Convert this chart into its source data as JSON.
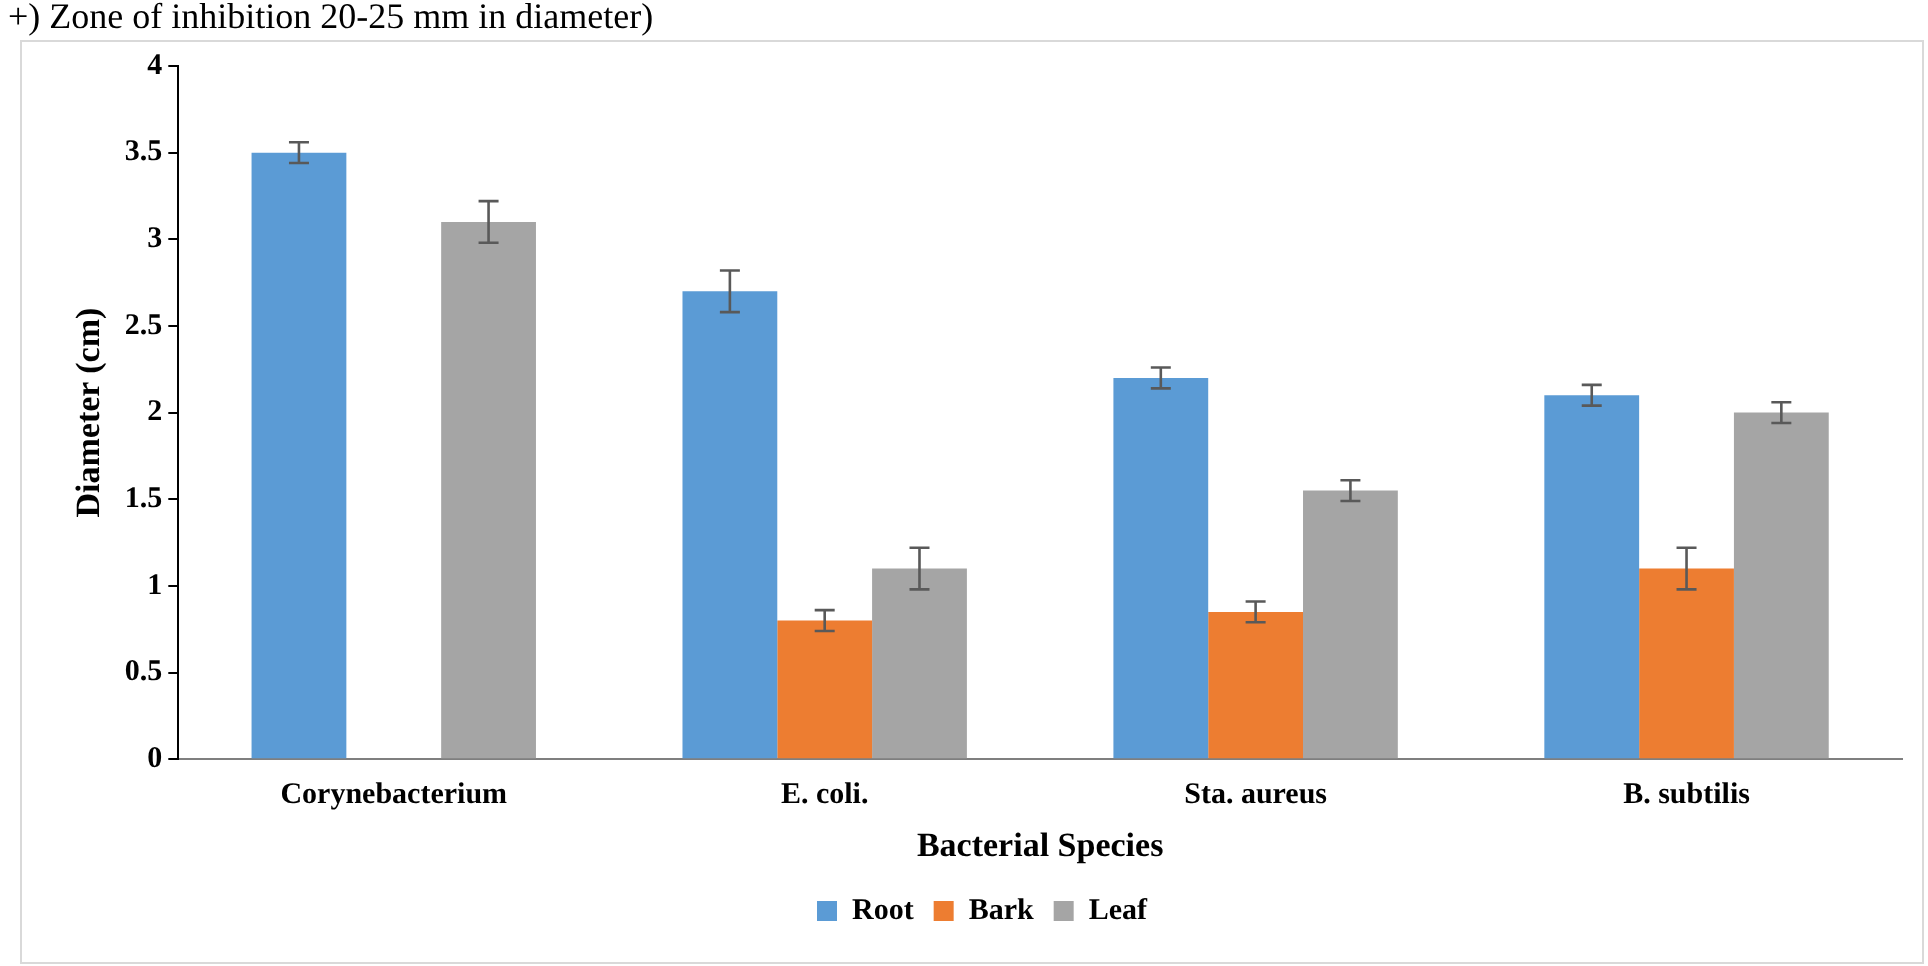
{
  "chart_data": {
    "type": "bar",
    "annotations": [
      "+) Zone of inhibition 20-25 mm in diameter)"
    ],
    "xlabel": "Bacterial Species",
    "ylabel": "Diameter (cm)",
    "categories": [
      "Corynebacterium",
      "E. coli.",
      "Sta. aureus",
      "B. subtilis"
    ],
    "series": [
      {
        "name": "Root",
        "color": "#5b9bd5",
        "values": [
          3.5,
          2.7,
          2.2,
          2.1
        ],
        "errors": [
          0.06,
          0.12,
          0.06,
          0.06
        ]
      },
      {
        "name": "Bark",
        "color": "#ed7d31",
        "values": [
          null,
          0.8,
          0.85,
          1.1
        ],
        "errors": [
          null,
          0.06,
          0.06,
          0.12
        ]
      },
      {
        "name": "Leaf",
        "color": "#a5a5a5",
        "values": [
          3.1,
          1.1,
          1.55,
          2.0
        ],
        "errors": [
          0.12,
          0.12,
          0.06,
          0.06
        ]
      }
    ],
    "ylim": [
      0,
      4
    ],
    "yticks": [
      0,
      0.5,
      1,
      1.5,
      2,
      2.5,
      3,
      3.5,
      4
    ],
    "grid": false,
    "legend": "bottom"
  }
}
